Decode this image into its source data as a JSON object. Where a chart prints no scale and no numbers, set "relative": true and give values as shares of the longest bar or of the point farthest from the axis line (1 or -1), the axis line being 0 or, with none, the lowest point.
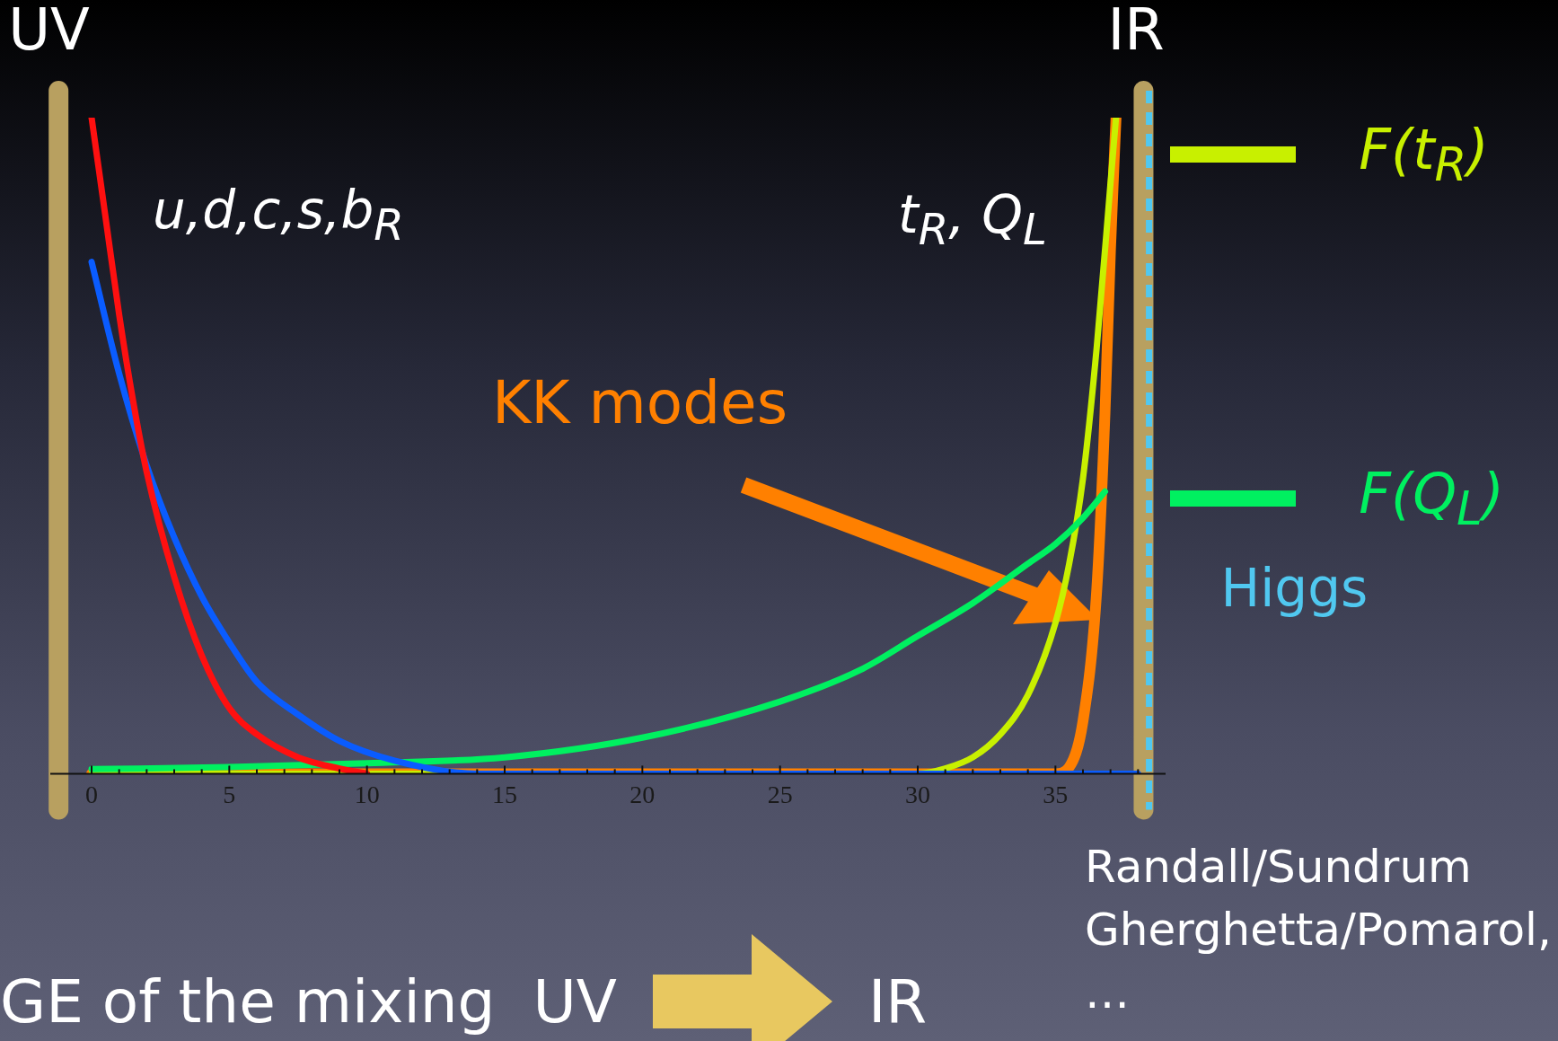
{
  "chart_data": {
    "type": "line",
    "relative": true,
    "xlim": [
      -1.5,
      39
    ],
    "xticks": [
      0,
      {
        "value": 1,
        "label": null
      },
      {
        "value": 2,
        "label": null
      },
      {
        "value": 3,
        "label": null
      },
      {
        "value": 4,
        "label": null
      },
      5,
      {
        "value": 6,
        "label": null
      },
      {
        "value": 7,
        "label": null
      },
      {
        "value": 8,
        "label": null
      },
      {
        "value": 9,
        "label": null
      },
      10,
      {
        "value": 11,
        "label": null
      },
      {
        "value": 12,
        "label": null
      },
      {
        "value": 13,
        "label": null
      },
      {
        "value": 14,
        "label": null
      },
      15,
      {
        "value": 16,
        "label": null
      },
      {
        "value": 17,
        "label": null
      },
      {
        "value": 18,
        "label": null
      },
      {
        "value": 19,
        "label": null
      },
      20,
      {
        "value": 21,
        "label": null
      },
      {
        "value": 22,
        "label": null
      },
      {
        "value": 23,
        "label": null
      },
      {
        "value": 24,
        "label": null
      },
      25,
      {
        "value": 26,
        "label": null
      },
      {
        "value": 27,
        "label": null
      },
      {
        "value": 28,
        "label": null
      },
      {
        "value": 29,
        "label": null
      },
      30,
      {
        "value": 31,
        "label": null
      },
      {
        "value": 32,
        "label": null
      },
      {
        "value": 33,
        "label": null
      },
      {
        "value": 34,
        "label": null
      },
      35,
      {
        "value": 36,
        "label": null
      },
      {
        "value": 37,
        "label": null
      },
      {
        "value": 38,
        "label": null
      }
    ],
    "tick_labels": "x",
    "grid": false,
    "legend": "right",
    "marker": "none",
    "series": [
      {
        "color": "#ff1010",
        "x": [
          0,
          0.5,
          1,
          1.5,
          2,
          3,
          4,
          5,
          6,
          7.5,
          9,
          10
        ],
        "values": [
          1.0,
          0.85,
          0.7,
          0.57,
          0.46,
          0.3,
          0.18,
          0.1,
          0.06,
          0.025,
          0.008,
          0
        ]
      },
      {
        "color": "#0a5cff",
        "x": [
          0,
          1,
          2,
          3,
          4,
          5,
          6,
          7.5,
          9,
          11,
          14,
          38
        ],
        "values": [
          0.78,
          0.61,
          0.47,
          0.36,
          0.27,
          0.2,
          0.14,
          0.09,
          0.05,
          0.02,
          0,
          0
        ]
      },
      {
        "name": "F(Q$_{L}$)",
        "color": "#00f060",
        "x": [
          0,
          5,
          10,
          15,
          20,
          25,
          28,
          30,
          32,
          34,
          35,
          36,
          36.8
        ],
        "values": [
          0.007,
          0.01,
          0.016,
          0.025,
          0.055,
          0.11,
          0.16,
          0.21,
          0.26,
          0.32,
          0.35,
          0.39,
          0.43
        ]
      },
      {
        "name": "F(t$_{R}$)",
        "color": "#c8f000",
        "x": [
          0,
          30,
          31,
          32,
          33,
          34,
          35,
          35.5,
          36,
          36.5,
          37,
          37.2
        ],
        "values": [
          0,
          0,
          0.008,
          0.025,
          0.06,
          0.12,
          0.23,
          0.32,
          0.45,
          0.65,
          0.9,
          1.0
        ]
      },
      {
        "color": "#ff8000",
        "x": [
          0,
          35,
          35.5,
          36,
          36.5,
          36.8,
          37,
          37.2
        ],
        "values": [
          0,
          0,
          0.01,
          0.08,
          0.28,
          0.55,
          0.8,
          1.0
        ]
      }
    ],
    "ref_lines": [
      {
        "axis": "x",
        "value": -1.2,
        "label": "UV",
        "color": "#b8a060",
        "line_style": "solid"
      },
      {
        "axis": "x",
        "value": 38.2,
        "label": "IR",
        "color": "#b8a060",
        "line_style": "solid"
      },
      {
        "axis": "x",
        "value": 38.4,
        "label": "Higgs",
        "color": "#50c8f0",
        "line_style": "dashed"
      }
    ],
    "annotations": [
      "u,d,c,s,b$_{R}$",
      "t$_{R}$, Q$_{L}$",
      "KK modes",
      "GE of the mixing  UV",
      "IR",
      "Randall/Sundrum Gherghetta/Pomarol, …"
    ]
  }
}
